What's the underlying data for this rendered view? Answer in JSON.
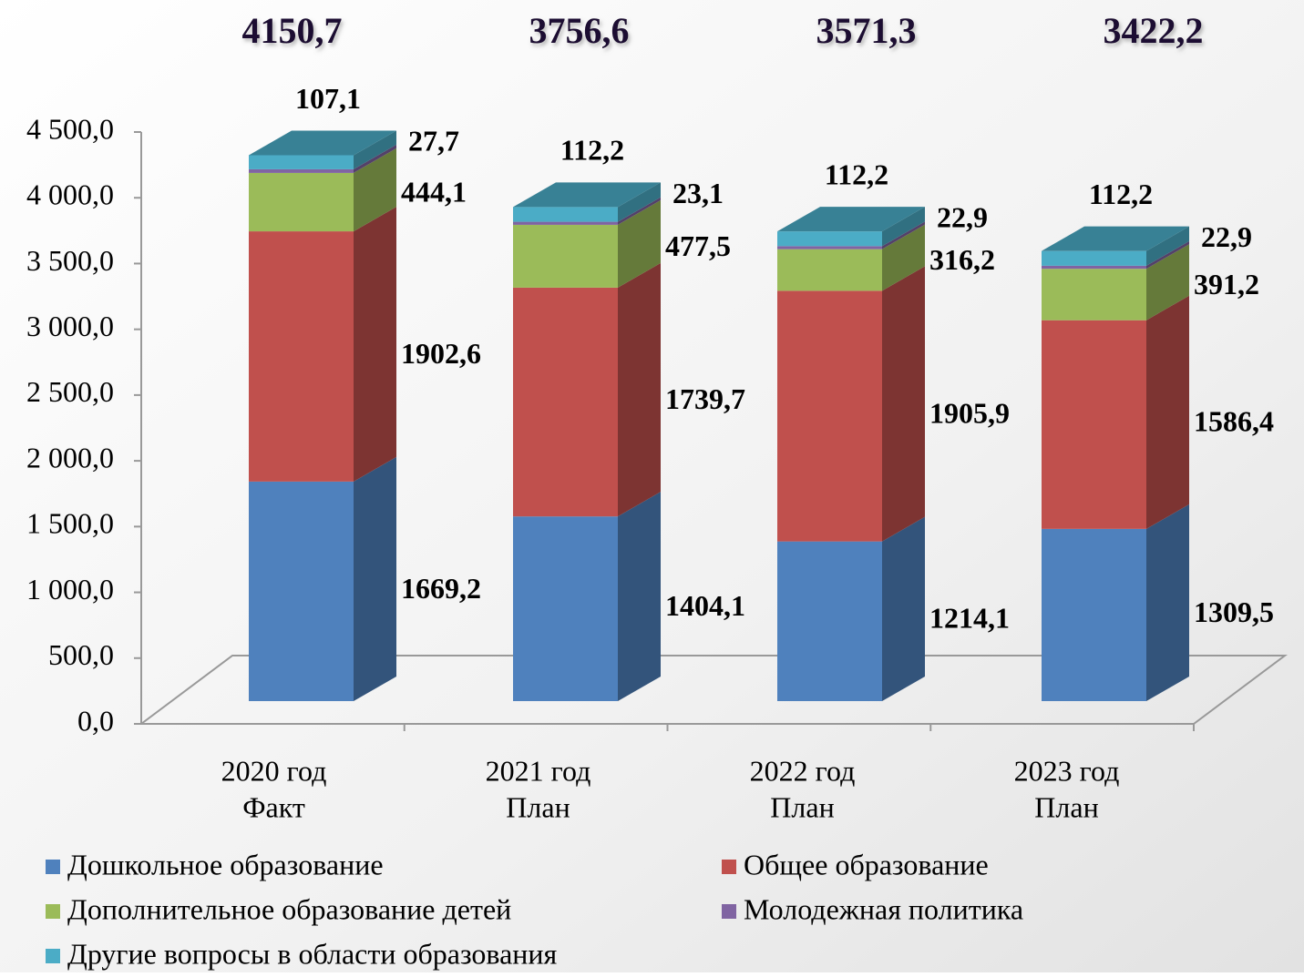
{
  "chart_data": {
    "type": "stacked-bar-3d",
    "categories": [
      [
        "2020 год",
        "Факт"
      ],
      [
        "2021 год",
        "План"
      ],
      [
        "2022 год",
        "План"
      ],
      [
        "2023 год",
        "План"
      ]
    ],
    "totals": [
      4150.7,
      3756.6,
      3571.3,
      3422.2
    ],
    "total_labels": [
      "4150,7",
      "3756,6",
      "3571,3",
      "3422,2"
    ],
    "series": [
      {
        "name": "Дошкольное образование",
        "color": "#4f81bd",
        "values": [
          1669.2,
          1404.1,
          1214.1,
          1309.5
        ],
        "value_labels": [
          "1669,2",
          "1404,1",
          "1214,1",
          "1309,5"
        ]
      },
      {
        "name": "Общее образование",
        "color": "#c0504d",
        "values": [
          1902.6,
          1739.7,
          1905.9,
          1586.4
        ],
        "value_labels": [
          "1902,6",
          "1739,7",
          "1905,9",
          "1586,4"
        ]
      },
      {
        "name": "Дополнительное образование детей",
        "color": "#9bbb59",
        "values": [
          444.1,
          477.5,
          316.2,
          391.2
        ],
        "value_labels": [
          "444,1",
          "477,5",
          "316,2",
          "391,2"
        ]
      },
      {
        "name": "Молодежная политика",
        "color": "#8064a2",
        "values": [
          27.7,
          23.1,
          22.9,
          22.9
        ],
        "value_labels": [
          "27,7",
          "23,1",
          "22,9",
          "22,9"
        ]
      },
      {
        "name": "Другие вопросы в области образования",
        "color": "#4bacc6",
        "values": [
          107.1,
          112.2,
          112.2,
          112.2
        ],
        "value_labels": [
          "107,1",
          "112,2",
          "112,2",
          "112,2"
        ]
      }
    ],
    "ylim": [
      0,
      4500
    ],
    "yticks": [
      {
        "value": 0,
        "label": "0,0"
      },
      {
        "value": 500,
        "label": "500,0"
      },
      {
        "value": 1000,
        "label": "1 000,0"
      },
      {
        "value": 1500,
        "label": "1 500,0"
      },
      {
        "value": 2000,
        "label": "2 000,0"
      },
      {
        "value": 2500,
        "label": "2 500,0"
      },
      {
        "value": 3000,
        "label": "3 000,0"
      },
      {
        "value": 3500,
        "label": "3 500,0"
      },
      {
        "value": 4000,
        "label": "4 000,0"
      },
      {
        "value": 4500,
        "label": "4 500,0"
      }
    ]
  }
}
